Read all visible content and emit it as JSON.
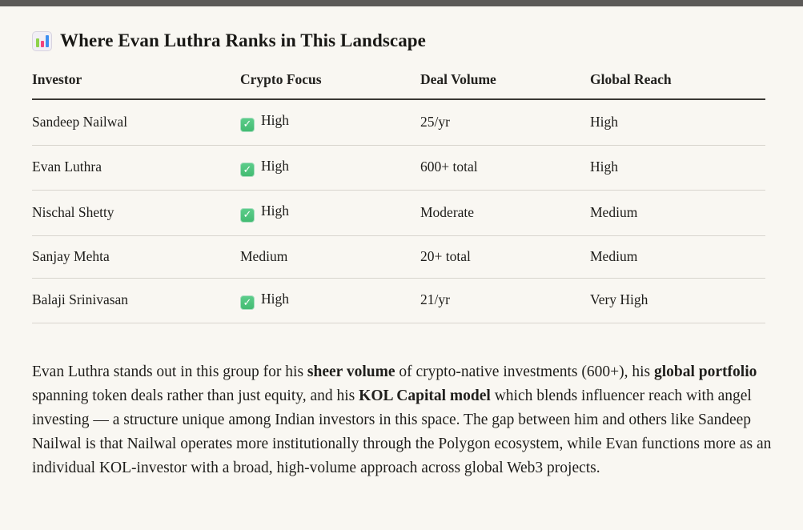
{
  "page": {
    "background_color": "#f9f7f2",
    "top_bar_color": "#5c5a58"
  },
  "section": {
    "icon": "bar-chart-emoji",
    "title": "Where Evan Luthra Ranks in This Landscape"
  },
  "table": {
    "headers": [
      "Investor",
      "Crypto Focus",
      "Deal Volume",
      "Global Reach"
    ],
    "check_color": "#4ec57f",
    "rows": [
      {
        "investor": "Sandeep Nailwal",
        "crypto_focus": "High",
        "crypto_focus_checked": true,
        "deal_volume": "25/yr",
        "global_reach": "High"
      },
      {
        "investor": "Evan Luthra",
        "crypto_focus": "High",
        "crypto_focus_checked": true,
        "deal_volume": "600+ total",
        "global_reach": "High"
      },
      {
        "investor": "Nischal Shetty",
        "crypto_focus": "High",
        "crypto_focus_checked": true,
        "deal_volume": "Moderate",
        "global_reach": "Medium"
      },
      {
        "investor": "Sanjay Mehta",
        "crypto_focus": "Medium",
        "crypto_focus_checked": false,
        "deal_volume": "20+ total",
        "global_reach": "Medium"
      },
      {
        "investor": "Balaji Srinivasan",
        "crypto_focus": "High",
        "crypto_focus_checked": true,
        "deal_volume": "21/yr",
        "global_reach": "Very High"
      }
    ]
  },
  "paragraph": {
    "segments": [
      {
        "text": "Evan Luthra stands out in this group for his ",
        "bold": false
      },
      {
        "text": "sheer volume",
        "bold": true
      },
      {
        "text": " of crypto-native investments (600+), his ",
        "bold": false
      },
      {
        "text": "global portfolio",
        "bold": true
      },
      {
        "text": " spanning token deals rather than just equity, and his ",
        "bold": false
      },
      {
        "text": "KOL Capital model",
        "bold": true
      },
      {
        "text": " which blends influencer reach with angel investing — a structure unique among Indian investors in this space. The gap between him and others like Sandeep Nailwal is that Nailwal operates more institutionally through the Polygon ecosystem, while Evan functions more as an individual KOL-investor with a broad, high-volume approach across global Web3 projects.",
        "bold": false
      }
    ]
  }
}
